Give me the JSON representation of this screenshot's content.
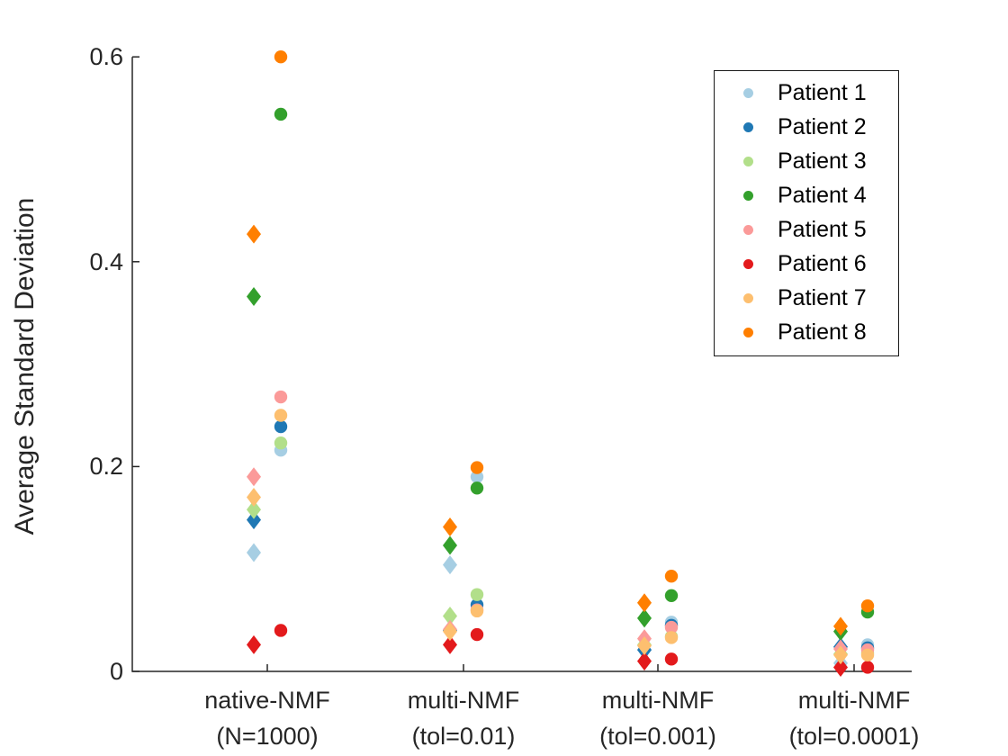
{
  "figure": {
    "background": "#ffffff",
    "text_color": "#262626",
    "axis_color": "#262626"
  },
  "chart_data": {
    "type": "scatter",
    "title": "",
    "xlabel": "",
    "ylabel": "Average Standard Deviation",
    "ylim": [
      0,
      0.6
    ],
    "ytick_values": [
      0,
      0.2,
      0.4,
      0.6
    ],
    "ytick_labels": [
      "0",
      "0.2",
      "0.4",
      "0.6"
    ],
    "grid": false,
    "legend_position": "upper-right",
    "legend_marker": "circle",
    "marker_shapes_per_patient": [
      "diamond",
      "circle"
    ],
    "categories": [
      {
        "line1": "native-NMF",
        "line2": "(N=1000)"
      },
      {
        "line1": "multi-NMF",
        "line2": "(tol=0.01)"
      },
      {
        "line1": "multi-NMF",
        "line2": "(tol=0.001)"
      },
      {
        "line1": "multi-NMF",
        "line2": "(tol=0.0001)"
      }
    ],
    "series": [
      {
        "name": "Patient 1",
        "color": "#A6CEE3",
        "diamond": [
          0.116,
          0.104,
          0.021,
          0.008
        ],
        "circle": [
          0.216,
          0.19,
          0.048,
          0.026
        ]
      },
      {
        "name": "Patient 2",
        "color": "#1F78B4",
        "diamond": [
          0.148,
          0.04,
          0.021,
          0.024
        ],
        "circle": [
          0.239,
          0.065,
          0.045,
          0.023
        ]
      },
      {
        "name": "Patient 3",
        "color": "#B2DF8A",
        "diamond": [
          0.158,
          0.054,
          0.026,
          0.017
        ],
        "circle": [
          0.223,
          0.075,
          0.034,
          0.018
        ]
      },
      {
        "name": "Patient 4",
        "color": "#33A02C",
        "diamond": [
          0.366,
          0.123,
          0.052,
          0.039
        ],
        "circle": [
          0.544,
          0.179,
          0.074,
          0.058
        ]
      },
      {
        "name": "Patient 5",
        "color": "#FB9A99",
        "diamond": [
          0.19,
          0.041,
          0.032,
          0.022
        ],
        "circle": [
          0.268,
          0.06,
          0.043,
          0.021
        ]
      },
      {
        "name": "Patient 6",
        "color": "#E31A1C",
        "diamond": [
          0.026,
          0.026,
          0.01,
          0.004
        ],
        "circle": [
          0.04,
          0.036,
          0.012,
          0.004
        ]
      },
      {
        "name": "Patient 7",
        "color": "#FDBF6F",
        "diamond": [
          0.17,
          0.039,
          0.025,
          0.016
        ],
        "circle": [
          0.25,
          0.059,
          0.033,
          0.016
        ]
      },
      {
        "name": "Patient 8",
        "color": "#FF7F00",
        "diamond": [
          0.427,
          0.141,
          0.067,
          0.044
        ],
        "circle": [
          0.6,
          0.199,
          0.093,
          0.064
        ]
      }
    ]
  }
}
